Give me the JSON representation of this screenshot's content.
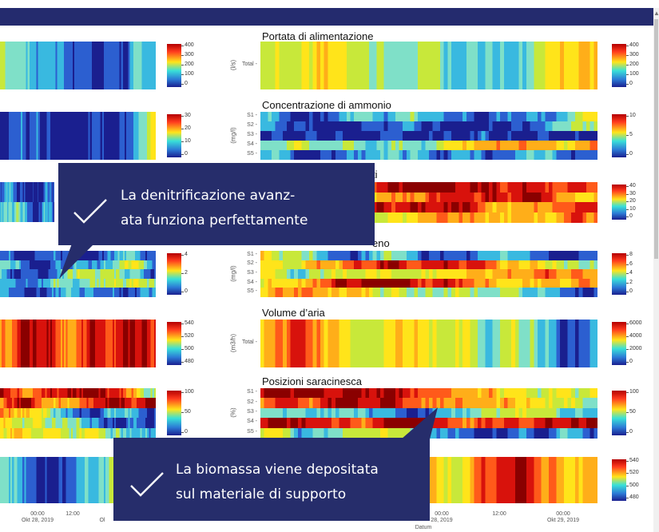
{
  "colors": {
    "bar": "#242b6e",
    "callout": "#262d6b"
  },
  "charts": [
    {
      "title": "Portata di alimentazione",
      "unit": "(l/s)",
      "rows": [
        "Total"
      ],
      "colorbar": [
        "400",
        "300",
        "200",
        "100",
        "0"
      ]
    },
    {
      "title": "Concentrazione di ammonio",
      "unit": "(mg/l)",
      "rows": [
        "S1",
        "S2",
        "S3",
        "S4",
        "S5"
      ],
      "colorbar": [
        "10",
        "5",
        "0"
      ]
    },
    {
      "title": "ti",
      "unit": "",
      "rows": [],
      "colorbar": [
        "40",
        "30",
        "20",
        "10",
        "0"
      ]
    },
    {
      "title": "eno",
      "unit": "(mg/l)",
      "rows": [
        "S1",
        "S2",
        "S3",
        "S4",
        "S5"
      ],
      "colorbar": [
        "8",
        "6",
        "4",
        "2",
        "0"
      ]
    },
    {
      "title": "Volume d’aria",
      "unit": "(m3/h)",
      "rows": [
        "Total"
      ],
      "colorbar": [
        "6000",
        "4000",
        "2000",
        "0"
      ]
    },
    {
      "title": "Posizioni saracinesca",
      "unit": "(%)",
      "rows": [
        "S1",
        "S2",
        "S3",
        "S4",
        "S5"
      ],
      "colorbar": [
        "100",
        "50",
        "0"
      ]
    },
    {
      "title": "",
      "unit": "",
      "rows": [],
      "colorbar": [
        "540",
        "520",
        "500",
        "480"
      ]
    }
  ],
  "left_colorbars": [
    [
      "400",
      "300",
      "200",
      "100",
      "0"
    ],
    [
      "30",
      "20",
      "10",
      "0"
    ],
    [],
    [
      "4",
      "2",
      "0"
    ],
    [
      "540",
      "520",
      "500",
      "480"
    ],
    [
      "100",
      "50",
      "0"
    ],
    []
  ],
  "xaxis_left": [
    {
      "time": "00:00",
      "date": "Okt 28, 2019"
    },
    {
      "time": "12:00",
      "date": ""
    },
    {
      "time": "",
      "date": "Ol"
    }
  ],
  "xaxis_right": [
    {
      "time": "00:00",
      "date": "28, 2019"
    },
    {
      "time": "12:00",
      "date": ""
    },
    {
      "time": "00:00",
      "date": "Okt 29, 2019"
    }
  ],
  "xaxis_title": "Datum",
  "callouts": [
    {
      "line1": "La denitrificazione avanz-",
      "line2": "ata funziona perfettamente",
      "icon": "checkmark-icon"
    },
    {
      "line1": "La biomassa viene depositata",
      "line2": "sul materiale di supporto",
      "icon": "checkmark-icon"
    }
  ]
}
